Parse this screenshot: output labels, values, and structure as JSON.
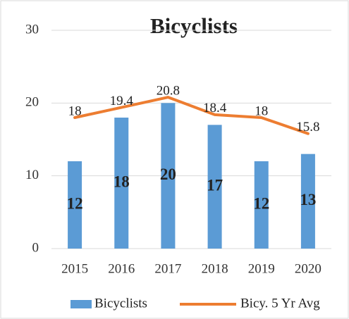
{
  "chart_data": {
    "type": "bar",
    "title": "Bicyclists",
    "categories": [
      "2015",
      "2016",
      "2017",
      "2018",
      "2019",
      "2020"
    ],
    "series": [
      {
        "name": "Bicyclists",
        "type": "bar",
        "color": "#5b9bd5",
        "values": [
          12,
          18,
          20,
          17,
          12,
          13
        ]
      },
      {
        "name": "Bicy. 5 Yr Avg",
        "type": "line",
        "color": "#ed7d31",
        "values": [
          18,
          19.4,
          20.8,
          18.4,
          18,
          15.8
        ]
      }
    ],
    "ylim": [
      0,
      30
    ],
    "yticks": [
      0,
      10,
      20,
      30
    ],
    "grid": true,
    "legend": "bottom"
  }
}
